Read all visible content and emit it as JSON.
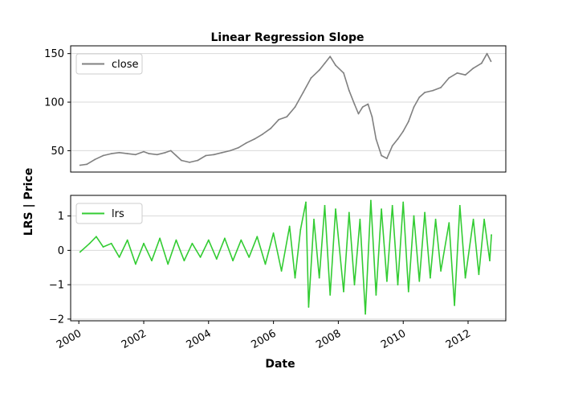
{
  "chart_data": {
    "type": "line",
    "title": "Linear Regression Slope",
    "xlabel": "Date",
    "ylabel": "LRS | Price",
    "x_ticks": [
      "2000",
      "2002",
      "2004",
      "2006",
      "2008",
      "2010",
      "2012"
    ],
    "xlim": [
      "1999-10-01",
      "2013-03-01"
    ],
    "grid": "horizontal",
    "panels": [
      {
        "legend": "top-left",
        "ylim": [
          28,
          158
        ],
        "y_ticks": [
          "50",
          "100",
          "150"
        ],
        "series": [
          {
            "name": "close",
            "color": "#808080",
            "points": [
              [
                "2000-01-15",
                35
              ],
              [
                "2000-04-01",
                36
              ],
              [
                "2000-07-01",
                41
              ],
              [
                "2000-10-01",
                45
              ],
              [
                "2001-01-01",
                47
              ],
              [
                "2001-04-01",
                48
              ],
              [
                "2001-07-01",
                47
              ],
              [
                "2001-10-01",
                46
              ],
              [
                "2002-01-01",
                49
              ],
              [
                "2002-03-01",
                47
              ],
              [
                "2002-06-01",
                46
              ],
              [
                "2002-09-01",
                48
              ],
              [
                "2002-11-01",
                50
              ],
              [
                "2003-01-01",
                45
              ],
              [
                "2003-03-01",
                40
              ],
              [
                "2003-06-01",
                38
              ],
              [
                "2003-09-01",
                40
              ],
              [
                "2003-12-01",
                45
              ],
              [
                "2004-03-01",
                46
              ],
              [
                "2004-06-01",
                48
              ],
              [
                "2004-09-01",
                50
              ],
              [
                "2004-12-01",
                53
              ],
              [
                "2005-03-01",
                58
              ],
              [
                "2005-06-01",
                62
              ],
              [
                "2005-09-01",
                67
              ],
              [
                "2005-12-01",
                73
              ],
              [
                "2006-03-01",
                82
              ],
              [
                "2006-06-01",
                85
              ],
              [
                "2006-09-01",
                95
              ],
              [
                "2006-12-01",
                110
              ],
              [
                "2007-03-01",
                125
              ],
              [
                "2007-06-01",
                133
              ],
              [
                "2007-08-01",
                140
              ],
              [
                "2007-10-01",
                147
              ],
              [
                "2007-12-01",
                138
              ],
              [
                "2008-03-01",
                130
              ],
              [
                "2008-05-01",
                112
              ],
              [
                "2008-07-01",
                98
              ],
              [
                "2008-08-15",
                88
              ],
              [
                "2008-10-01",
                95
              ],
              [
                "2008-12-01",
                98
              ],
              [
                "2009-01-15",
                85
              ],
              [
                "2009-03-01",
                62
              ],
              [
                "2009-05-01",
                45
              ],
              [
                "2009-07-01",
                42
              ],
              [
                "2009-09-01",
                55
              ],
              [
                "2009-11-01",
                62
              ],
              [
                "2010-01-01",
                70
              ],
              [
                "2010-03-01",
                80
              ],
              [
                "2010-05-01",
                95
              ],
              [
                "2010-07-01",
                105
              ],
              [
                "2010-09-01",
                110
              ],
              [
                "2010-12-01",
                112
              ],
              [
                "2011-03-01",
                115
              ],
              [
                "2011-06-01",
                125
              ],
              [
                "2011-09-01",
                130
              ],
              [
                "2011-12-01",
                128
              ],
              [
                "2012-03-01",
                135
              ],
              [
                "2012-06-01",
                140
              ],
              [
                "2012-08-01",
                150
              ],
              [
                "2012-09-15",
                142
              ]
            ]
          }
        ]
      },
      {
        "legend": "top-left",
        "ylim": [
          -2.05,
          1.6
        ],
        "y_ticks": [
          "1",
          "0",
          "−1",
          "−2"
        ],
        "series": [
          {
            "name": "lrs",
            "color": "#33cc33",
            "points": [
              [
                "2000-01-15",
                -0.05
              ],
              [
                "2000-05-01",
                0.2
              ],
              [
                "2000-07-15",
                0.4
              ],
              [
                "2000-10-01",
                0.1
              ],
              [
                "2001-01-01",
                0.2
              ],
              [
                "2001-04-01",
                -0.2
              ],
              [
                "2001-07-01",
                0.3
              ],
              [
                "2001-10-01",
                -0.4
              ],
              [
                "2002-01-01",
                0.2
              ],
              [
                "2002-04-01",
                -0.3
              ],
              [
                "2002-07-01",
                0.35
              ],
              [
                "2002-10-01",
                -0.4
              ],
              [
                "2003-01-01",
                0.3
              ],
              [
                "2003-04-01",
                -0.3
              ],
              [
                "2003-07-01",
                0.2
              ],
              [
                "2003-10-01",
                -0.2
              ],
              [
                "2004-01-01",
                0.3
              ],
              [
                "2004-04-01",
                -0.25
              ],
              [
                "2004-07-01",
                0.35
              ],
              [
                "2004-10-01",
                -0.3
              ],
              [
                "2005-01-01",
                0.3
              ],
              [
                "2005-04-01",
                -0.2
              ],
              [
                "2005-07-01",
                0.4
              ],
              [
                "2005-10-01",
                -0.4
              ],
              [
                "2006-01-01",
                0.5
              ],
              [
                "2006-04-01",
                -0.6
              ],
              [
                "2006-07-01",
                0.7
              ],
              [
                "2006-09-01",
                -0.8
              ],
              [
                "2006-11-01",
                0.6
              ],
              [
                "2007-01-01",
                1.4
              ],
              [
                "2007-02-01",
                -1.65
              ],
              [
                "2007-04-01",
                0.9
              ],
              [
                "2007-06-01",
                -0.8
              ],
              [
                "2007-08-01",
                1.3
              ],
              [
                "2007-10-01",
                -1.3
              ],
              [
                "2007-12-01",
                1.2
              ],
              [
                "2008-03-01",
                -1.2
              ],
              [
                "2008-05-01",
                1.1
              ],
              [
                "2008-07-01",
                -1.0
              ],
              [
                "2008-09-01",
                0.9
              ],
              [
                "2008-11-01",
                -1.85
              ],
              [
                "2009-01-01",
                1.45
              ],
              [
                "2009-03-01",
                -1.3
              ],
              [
                "2009-05-01",
                1.2
              ],
              [
                "2009-07-01",
                -0.9
              ],
              [
                "2009-09-01",
                1.3
              ],
              [
                "2009-11-01",
                -1.0
              ],
              [
                "2010-01-01",
                1.4
              ],
              [
                "2010-03-01",
                -1.2
              ],
              [
                "2010-05-01",
                1.0
              ],
              [
                "2010-07-01",
                -0.9
              ],
              [
                "2010-09-01",
                1.1
              ],
              [
                "2010-11-01",
                -0.8
              ],
              [
                "2011-01-01",
                0.9
              ],
              [
                "2011-03-01",
                -0.6
              ],
              [
                "2011-06-01",
                0.8
              ],
              [
                "2011-08-01",
                -1.6
              ],
              [
                "2011-10-01",
                1.3
              ],
              [
                "2011-12-01",
                -0.8
              ],
              [
                "2012-03-01",
                0.9
              ],
              [
                "2012-05-01",
                -0.7
              ],
              [
                "2012-07-01",
                0.9
              ],
              [
                "2012-09-01",
                -0.3
              ],
              [
                "2012-09-20",
                0.45
              ]
            ]
          }
        ]
      }
    ]
  }
}
